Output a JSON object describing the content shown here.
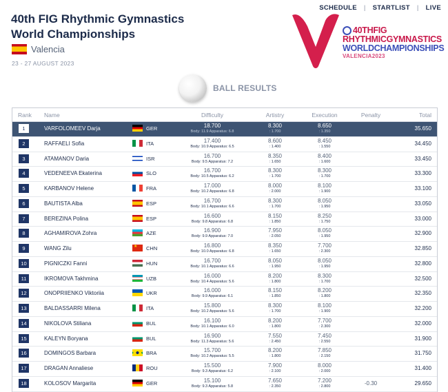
{
  "nav": {
    "schedule": "SCHEDULE",
    "startlist": "STARTLIST",
    "live": "LIVE",
    "separator": "|"
  },
  "header": {
    "title": "40th FIG Rhythmic Gymnastics World Championships",
    "location": "Valencia",
    "dates": "23 - 27 AUGUST 2023"
  },
  "logo": {
    "line1": "40THFIG",
    "line2": "RHYTHMICGYMNASTICS",
    "line3": "WORLDCHAMPIONSHIPS",
    "line4": "VALENCIA2023",
    "colors": {
      "v": "#d41f4c",
      "pink": "#c8184a",
      "blue": "#3b4fb8"
    }
  },
  "section": {
    "title": "BALL RESULTS",
    "icon": "ball-icon"
  },
  "table": {
    "headers": {
      "rank": "Rank",
      "name": "Name",
      "difficulty": "Difficulty",
      "artistry": "Artistry",
      "execution": "Execution",
      "penalty": "Penalty",
      "total": "Total"
    },
    "rows": [
      {
        "rank": "1",
        "name": "VARFOLOMEEV Darja",
        "noc": "GER",
        "flag": "ger",
        "difficulty": "18.700",
        "diff_sub": "Body: 11.9 Apparatus: 6.8",
        "artistry": "8.300",
        "art_sub": ": 1.700",
        "execution": "8.650",
        "exe_sub": ": 1.350",
        "penalty": "",
        "total": "35.650",
        "highlight": true
      },
      {
        "rank": "2",
        "name": "RAFFAELI Sofia",
        "noc": "ITA",
        "flag": "ita",
        "difficulty": "17.400",
        "diff_sub": "Body: 10.9 Apparatus: 6.5",
        "artistry": "8.600",
        "art_sub": ": 1.400",
        "execution": "8.450",
        "exe_sub": ": 1.550",
        "penalty": "",
        "total": "34.450"
      },
      {
        "rank": "3",
        "name": "ATAMANOV Daria",
        "noc": "ISR",
        "flag": "isr",
        "difficulty": "16.700",
        "diff_sub": "Body: 9.5 Apparatus: 7.2",
        "artistry": "8.350",
        "art_sub": ": 1.650",
        "execution": "8.400",
        "exe_sub": ": 1.600",
        "penalty": "",
        "total": "33.450"
      },
      {
        "rank": "4",
        "name": "VEDENEEVA Ekaterina",
        "noc": "SLO",
        "flag": "slo",
        "difficulty": "16.700",
        "diff_sub": "Body: 10.5 Apparatus: 6.2",
        "artistry": "8.300",
        "art_sub": ": 1.700",
        "execution": "8.300",
        "exe_sub": ": 1.700",
        "penalty": "",
        "total": "33.300"
      },
      {
        "rank": "5",
        "name": "KARBANOV Helene",
        "noc": "FRA",
        "flag": "fra",
        "difficulty": "17.000",
        "diff_sub": "Body: 10.2 Apparatus: 6.8",
        "artistry": "8.000",
        "art_sub": ": 2.000",
        "execution": "8.100",
        "exe_sub": ": 1.900",
        "penalty": "",
        "total": "33.100"
      },
      {
        "rank": "6",
        "name": "BAUTISTA Alba",
        "noc": "ESP",
        "flag": "esp",
        "difficulty": "16.700",
        "diff_sub": "Body: 10.1 Apparatus: 6.6",
        "artistry": "8.300",
        "art_sub": ": 1.700",
        "execution": "8.050",
        "exe_sub": ": 1.950",
        "penalty": "",
        "total": "33.050"
      },
      {
        "rank": "7",
        "name": "BEREZINA Polina",
        "noc": "ESP",
        "flag": "esp",
        "difficulty": "16.600",
        "diff_sub": "Body: 9.8 Apparatus: 6.8",
        "artistry": "8.150",
        "art_sub": ": 1.850",
        "execution": "8.250",
        "exe_sub": ": 1.750",
        "penalty": "",
        "total": "33.000"
      },
      {
        "rank": "8",
        "name": "AGHAMIROVA Zohra",
        "noc": "AZE",
        "flag": "aze",
        "difficulty": "16.900",
        "diff_sub": "Body: 9.9 Apparatus: 7.0",
        "artistry": "7.950",
        "art_sub": ": 2.050",
        "execution": "8.050",
        "exe_sub": ": 1.950",
        "penalty": "",
        "total": "32.900"
      },
      {
        "rank": "9",
        "name": "WANG Zilu",
        "noc": "CHN",
        "flag": "chn",
        "difficulty": "16.800",
        "diff_sub": "Body: 10.0 Apparatus: 6.8",
        "artistry": "8.350",
        "art_sub": ": 1.650",
        "execution": "7.700",
        "exe_sub": ": 2.300",
        "penalty": "",
        "total": "32.850"
      },
      {
        "rank": "10",
        "name": "PIGNICZKI Fanni",
        "noc": "HUN",
        "flag": "hun",
        "difficulty": "16.700",
        "diff_sub": "Body: 10.1 Apparatus: 6.6",
        "artistry": "8.050",
        "art_sub": ": 1.950",
        "execution": "8.050",
        "exe_sub": ": 1.950",
        "penalty": "",
        "total": "32.800"
      },
      {
        "rank": "11",
        "name": "IKROMOVA Takhmina",
        "noc": "UZB",
        "flag": "uzb",
        "difficulty": "16.000",
        "diff_sub": "Body: 10.4 Apparatus: 5.6",
        "artistry": "8.200",
        "art_sub": ": 1.800",
        "execution": "8.300",
        "exe_sub": ": 1.700",
        "penalty": "",
        "total": "32.500"
      },
      {
        "rank": "12",
        "name": "ONOPRIIENKO Viktoriia",
        "noc": "UKR",
        "flag": "ukr",
        "difficulty": "16.000",
        "diff_sub": "Body: 9.9 Apparatus: 6.1",
        "artistry": "8.150",
        "art_sub": ": 1.850",
        "execution": "8.200",
        "exe_sub": ": 1.800",
        "penalty": "",
        "total": "32.350"
      },
      {
        "rank": "13",
        "name": "BALDASSARRI Milena",
        "noc": "ITA",
        "flag": "ita",
        "difficulty": "15.800",
        "diff_sub": "Body: 10.2 Apparatus: 5.6",
        "artistry": "8.300",
        "art_sub": ": 1.700",
        "execution": "8.100",
        "exe_sub": ": 1.900",
        "penalty": "",
        "total": "32.200"
      },
      {
        "rank": "14",
        "name": "NIKOLOVA Stiliana",
        "noc": "BUL",
        "flag": "bul",
        "difficulty": "16.100",
        "diff_sub": "Body: 10.1 Apparatus: 6.0",
        "artistry": "8.200",
        "art_sub": ": 1.800",
        "execution": "7.700",
        "exe_sub": ": 2.300",
        "penalty": "",
        "total": "32.000"
      },
      {
        "rank": "15",
        "name": "KALEYN Boryana",
        "noc": "BUL",
        "flag": "bul",
        "difficulty": "16.900",
        "diff_sub": "Body: 11.3 Apparatus: 5.6",
        "artistry": "7.550",
        "art_sub": ": 2.450",
        "execution": "7.450",
        "exe_sub": ": 2.550",
        "penalty": "",
        "total": "31.900"
      },
      {
        "rank": "16",
        "name": "DOMINGOS Barbara",
        "noc": "BRA",
        "flag": "bra",
        "difficulty": "15.700",
        "diff_sub": "Body: 10.2 Apparatus: 5.5",
        "artistry": "8.200",
        "art_sub": ": 1.800",
        "execution": "7.850",
        "exe_sub": ": 2.150",
        "penalty": "",
        "total": "31.750"
      },
      {
        "rank": "17",
        "name": "DRAGAN Annaliese",
        "noc": "ROU",
        "flag": "rou",
        "difficulty": "15.500",
        "diff_sub": "Body: 9.3 Apparatus: 6.2",
        "artistry": "7.900",
        "art_sub": ": 2.100",
        "execution": "8.000",
        "exe_sub": ": 2.000",
        "penalty": "",
        "total": "31.400"
      },
      {
        "rank": "18",
        "name": "KOLOSOV Margarita",
        "noc": "GER",
        "flag": "ger",
        "difficulty": "15.100",
        "diff_sub": "Body: 9.3 Apparatus: 5.8",
        "artistry": "7.650",
        "art_sub": ": 2.350",
        "execution": "7.200",
        "exe_sub": ": 2.800",
        "penalty": "-0.30",
        "total": "29.650"
      }
    ]
  }
}
